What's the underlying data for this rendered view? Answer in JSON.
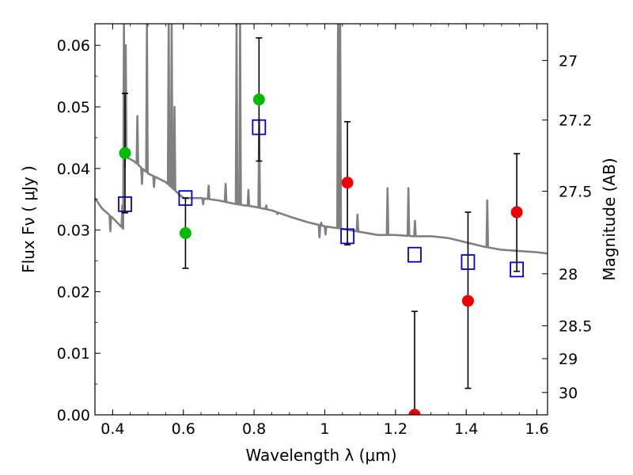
{
  "chart_data": {
    "type": "scatter",
    "title": "",
    "xlabel": "Wavelength  λ (μm)",
    "ylabel": "Flux  Fν  ( μJy )",
    "y2label": "Magnitude (AB)",
    "xlim": [
      0.35,
      1.63
    ],
    "ylim": [
      0.0,
      0.0635
    ],
    "grid": false,
    "x_ticks": [
      0.4,
      0.6,
      0.8,
      1.0,
      1.2,
      1.4,
      1.6
    ],
    "x_tick_labels": [
      "0.4",
      "0.6",
      "0.8",
      "1",
      "1.2",
      "1.4",
      "1.6"
    ],
    "y_ticks": [
      0.0,
      0.01,
      0.02,
      0.03,
      0.04,
      0.05,
      0.06
    ],
    "y_tick_labels": [
      "0.00",
      "0.01",
      "0.02",
      "0.03",
      "0.04",
      "0.05",
      "0.06"
    ],
    "y2_ticks": [
      {
        "label": "27",
        "flux": 0.05754
      },
      {
        "label": "27.2",
        "flux": 0.04786
      },
      {
        "label": "27.5",
        "flux": 0.03631
      },
      {
        "label": "28",
        "flux": 0.02291
      },
      {
        "label": "28.5",
        "flux": 0.01445
      },
      {
        "label": "29",
        "flux": 0.00912
      },
      {
        "label": "30",
        "flux": 0.00363
      }
    ],
    "colors": {
      "model": "#808080",
      "model_photometry": "#0000cc",
      "green": "#00bb00",
      "red": "#ee0000",
      "errorbar": "#000000"
    },
    "model_spectrum": {
      "continuum": [
        [
          0.35,
          0.0352
        ],
        [
          0.37,
          0.0335
        ],
        [
          0.4,
          0.032
        ],
        [
          0.43,
          0.0302
        ],
        [
          0.435,
          0.042
        ],
        [
          0.46,
          0.0412
        ],
        [
          0.5,
          0.0392
        ],
        [
          0.55,
          0.0378
        ],
        [
          0.6,
          0.0352
        ],
        [
          0.65,
          0.0352
        ],
        [
          0.7,
          0.0348
        ],
        [
          0.75,
          0.0342
        ],
        [
          0.8,
          0.0338
        ],
        [
          0.85,
          0.0332
        ],
        [
          0.9,
          0.0322
        ],
        [
          0.95,
          0.0313
        ],
        [
          1.0,
          0.0306
        ],
        [
          1.05,
          0.0302
        ],
        [
          1.1,
          0.0297
        ],
        [
          1.15,
          0.0292
        ],
        [
          1.2,
          0.0292
        ],
        [
          1.25,
          0.029
        ],
        [
          1.3,
          0.029
        ],
        [
          1.35,
          0.0287
        ],
        [
          1.4,
          0.028
        ],
        [
          1.45,
          0.0273
        ],
        [
          1.5,
          0.0268
        ],
        [
          1.55,
          0.0266
        ],
        [
          1.6,
          0.0264
        ],
        [
          1.63,
          0.0262
        ]
      ],
      "emission_lines": [
        {
          "x": 0.4275,
          "peak": 0.034
        },
        {
          "x": 0.432,
          "peak": 0.0635
        },
        {
          "x": 0.437,
          "peak": 0.06
        },
        {
          "x": 0.47,
          "peak": 0.0485
        },
        {
          "x": 0.497,
          "peak": 0.0635
        },
        {
          "x": 0.5585,
          "peak": 0.0635
        },
        {
          "x": 0.567,
          "peak": 0.0635
        },
        {
          "x": 0.575,
          "peak": 0.05
        },
        {
          "x": 0.6715,
          "peak": 0.0372
        },
        {
          "x": 0.7195,
          "peak": 0.0375
        },
        {
          "x": 0.7505,
          "peak": 0.0635
        },
        {
          "x": 0.7605,
          "peak": 0.0635
        },
        {
          "x": 0.784,
          "peak": 0.0365
        },
        {
          "x": 0.8145,
          "peak": 0.048
        },
        {
          "x": 0.8345,
          "peak": 0.034
        },
        {
          "x": 1.0375,
          "peak": 0.0635
        },
        {
          "x": 1.0435,
          "peak": 0.0635
        },
        {
          "x": 1.0925,
          "peak": 0.0325
        },
        {
          "x": 1.1775,
          "peak": 0.0368
        },
        {
          "x": 1.2365,
          "peak": 0.0368
        },
        {
          "x": 1.255,
          "peak": 0.0315
        },
        {
          "x": 1.4595,
          "peak": 0.0348
        }
      ],
      "absorption_lines": [
        {
          "x": 0.3935,
          "depth": 0.0298
        },
        {
          "x": 0.483,
          "depth": 0.0375
        },
        {
          "x": 0.517,
          "depth": 0.037
        },
        {
          "x": 0.589,
          "depth": 0.0355
        },
        {
          "x": 0.656,
          "depth": 0.0342
        },
        {
          "x": 0.866,
          "depth": 0.0326
        },
        {
          "x": 0.985,
          "depth": 0.0288
        },
        {
          "x": 0.99,
          "depth": 0.0312
        },
        {
          "x": 1.002,
          "depth": 0.0293
        }
      ]
    },
    "series": [
      {
        "marker": "open-square",
        "color": "#0000cc",
        "points": [
          [
            0.435,
            0.0342
          ],
          [
            0.606,
            0.0352
          ],
          [
            0.814,
            0.0467
          ],
          [
            1.064,
            0.029
          ],
          [
            1.254,
            0.026
          ],
          [
            1.405,
            0.0248
          ],
          [
            1.543,
            0.0236
          ]
        ]
      },
      {
        "marker": "filled-circle",
        "color": "#00bb00",
        "points": [
          [
            0.435,
            0.0425,
            0.0328,
            0.0522
          ],
          [
            0.606,
            0.0295,
            0.0238,
            0.0352
          ],
          [
            0.814,
            0.0512,
            0.0412,
            0.0612
          ]
        ]
      },
      {
        "marker": "filled-circle",
        "color": "#ee0000",
        "points": [
          [
            1.064,
            0.0377,
            0.0276,
            0.0476
          ],
          [
            1.254,
            0.0,
            0.0,
            0.0168
          ],
          [
            1.405,
            0.0185,
            0.0043,
            0.0329
          ],
          [
            1.543,
            0.0329,
            0.0233,
            0.0424
          ]
        ]
      }
    ]
  }
}
